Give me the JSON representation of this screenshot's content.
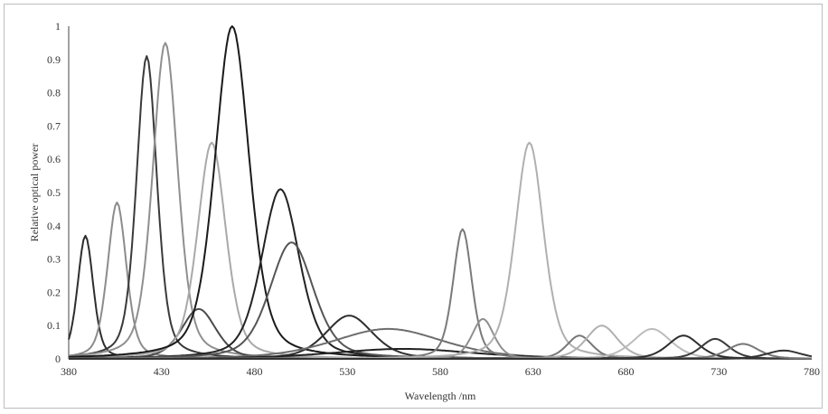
{
  "chart_data": {
    "type": "line",
    "title": "",
    "xlabel": "Wavelength /nm",
    "ylabel": "Relative optical power",
    "xlim": [
      380,
      780
    ],
    "ylim": [
      0,
      1
    ],
    "x_ticks": [
      "380",
      "430",
      "480",
      "530",
      "580",
      "630",
      "680",
      "730",
      "780"
    ],
    "y_ticks": [
      "0",
      "0.1",
      "0.2",
      "0.3",
      "0.4",
      "0.5",
      "0.6",
      "0.7",
      "0.8",
      "0.9",
      "1"
    ],
    "grid": false,
    "legend": "none",
    "series": [
      {
        "peak_nm": 389,
        "peak_value": 0.37,
        "fwhm_nm": 10,
        "color": "#2e2e2e"
      },
      {
        "peak_nm": 406,
        "peak_value": 0.47,
        "fwhm_nm": 12,
        "color": "#8c8c8c"
      },
      {
        "peak_nm": 422,
        "peak_value": 0.91,
        "fwhm_nm": 13,
        "color": "#3a3a3a"
      },
      {
        "peak_nm": 432,
        "peak_value": 0.95,
        "fwhm_nm": 16,
        "color": "#8f8f8f"
      },
      {
        "peak_nm": 450,
        "peak_value": 0.15,
        "fwhm_nm": 22,
        "color": "#4a4a4a"
      },
      {
        "peak_nm": 457,
        "peak_value": 0.65,
        "fwhm_nm": 18,
        "color": "#a9a9a9"
      },
      {
        "peak_nm": 468,
        "peak_value": 1.0,
        "fwhm_nm": 22,
        "color": "#1a1a1a"
      },
      {
        "peak_nm": 494,
        "peak_value": 0.51,
        "fwhm_nm": 24,
        "color": "#222222"
      },
      {
        "peak_nm": 500,
        "peak_value": 0.35,
        "fwhm_nm": 28,
        "color": "#555555"
      },
      {
        "peak_nm": 531,
        "peak_value": 0.13,
        "fwhm_nm": 30,
        "color": "#2e2e2e"
      },
      {
        "peak_nm": 552,
        "peak_value": 0.09,
        "fwhm_nm": 70,
        "color": "#6d6d6d"
      },
      {
        "peak_nm": 560,
        "peak_value": 0.03,
        "fwhm_nm": 90,
        "color": "#222222"
      },
      {
        "peak_nm": 592,
        "peak_value": 0.39,
        "fwhm_nm": 12,
        "color": "#7a7a7a"
      },
      {
        "peak_nm": 603,
        "peak_value": 0.12,
        "fwhm_nm": 14,
        "color": "#8f8f8f"
      },
      {
        "peak_nm": 628,
        "peak_value": 0.65,
        "fwhm_nm": 18,
        "color": "#b0b0b0"
      },
      {
        "peak_nm": 655,
        "peak_value": 0.07,
        "fwhm_nm": 16,
        "color": "#777777"
      },
      {
        "peak_nm": 667,
        "peak_value": 0.1,
        "fwhm_nm": 20,
        "color": "#b0b0b0"
      },
      {
        "peak_nm": 694,
        "peak_value": 0.09,
        "fwhm_nm": 24,
        "color": "#bcbcbc"
      },
      {
        "peak_nm": 711,
        "peak_value": 0.07,
        "fwhm_nm": 20,
        "color": "#2e2e2e"
      },
      {
        "peak_nm": 728,
        "peak_value": 0.06,
        "fwhm_nm": 18,
        "color": "#3a3a3a"
      },
      {
        "peak_nm": 743,
        "peak_value": 0.045,
        "fwhm_nm": 20,
        "color": "#777777"
      },
      {
        "peak_nm": 765,
        "peak_value": 0.025,
        "fwhm_nm": 22,
        "color": "#333333"
      }
    ]
  }
}
